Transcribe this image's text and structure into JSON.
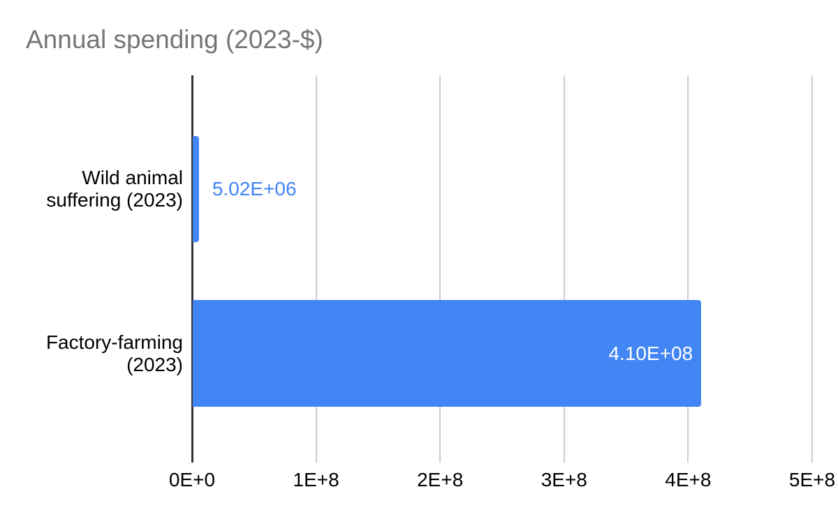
{
  "chart_data": {
    "type": "bar",
    "orientation": "horizontal",
    "title": "Annual spending (2023-$)",
    "xlabel": "",
    "ylabel": "",
    "xlim": [
      0,
      500000000
    ],
    "grid": true,
    "legend": "none",
    "categories": [
      "Wild animal suffering (2023)",
      "Factory-farming (2023)"
    ],
    "values": [
      5020000,
      410000000
    ],
    "bars": [
      {
        "category": "Wild animal suffering (2023)",
        "value": 5020000,
        "data_label": "5.02E+06",
        "data_label_position": "outside"
      },
      {
        "category": "Factory-farming (2023)",
        "value": 410000000,
        "data_label": "4.10E+08",
        "data_label_position": "inside"
      }
    ],
    "x_ticks": [
      {
        "label": "0E+0",
        "value": 0
      },
      {
        "label": "1E+8",
        "value": 100000000
      },
      {
        "label": "2E+8",
        "value": 200000000
      },
      {
        "label": "3E+8",
        "value": 300000000
      },
      {
        "label": "4E+8",
        "value": 400000000
      },
      {
        "label": "5E+8",
        "value": 500000000
      }
    ],
    "colors": {
      "background": "#ffffff",
      "bar": "#4285f4",
      "title": "#757575",
      "axis": "#333333",
      "gridline": "#cccccc",
      "label": "#000000",
      "data_label_outside": "#4285f4",
      "data_label_inside": "#ffffff"
    }
  }
}
